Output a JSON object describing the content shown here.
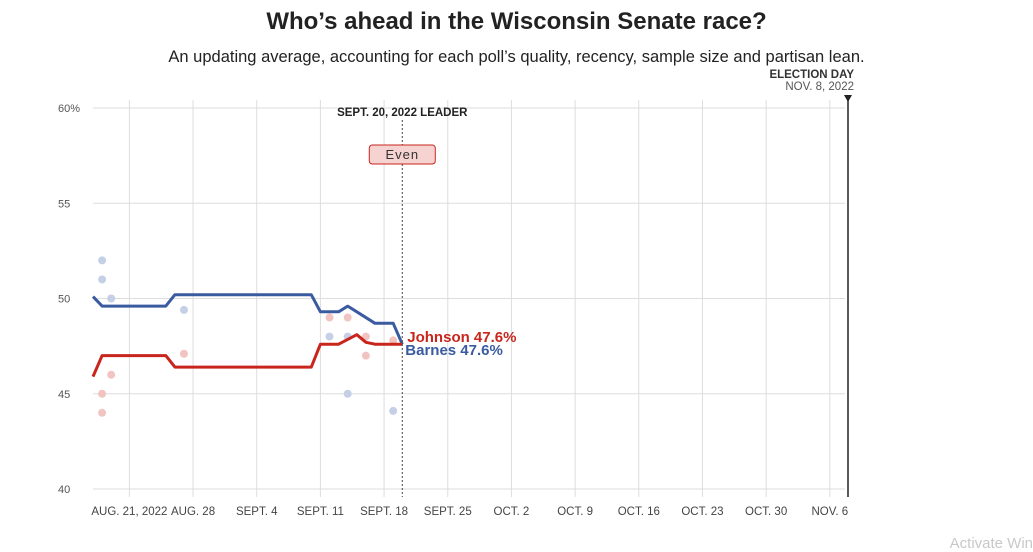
{
  "header": {
    "title": "Who’s ahead in the Wisconsin Senate race?",
    "subtitle": "An updating average, accounting for each poll’s quality, recency, sample size and partisan lean."
  },
  "watermark": "Activate Win",
  "chart_data": {
    "type": "line",
    "x_range": [
      "2022-08-17",
      "2022-11-08"
    ],
    "ylim": [
      40,
      60
    ],
    "y_ticks": [
      "60%",
      "55",
      "50",
      "45",
      "40"
    ],
    "y_tick_values": [
      60,
      55,
      50,
      45,
      40
    ],
    "x_ticks": [
      "AUG. 21, 2022",
      "AUG. 28",
      "SEPT. 4",
      "SEPT. 11",
      "SEPT. 18",
      "SEPT. 25",
      "OCT. 2",
      "OCT. 9",
      "OCT. 16",
      "OCT. 23",
      "OCT. 30",
      "NOV. 6"
    ],
    "x_tick_dates": [
      "2022-08-21",
      "2022-08-28",
      "2022-09-04",
      "2022-09-11",
      "2022-09-18",
      "2022-09-25",
      "2022-10-02",
      "2022-10-09",
      "2022-10-16",
      "2022-10-23",
      "2022-10-30",
      "2022-11-06"
    ],
    "grid": true,
    "current_date": "2022-09-20",
    "leader_label": "SEPT. 20, 2022 LEADER",
    "leader_value": "Even",
    "election_day": {
      "label": "ELECTION DAY",
      "date_label": "NOV. 8, 2022",
      "date": "2022-11-08"
    },
    "series": [
      {
        "name": "Barnes",
        "end_label": "Barnes 47.6%",
        "color": "#3a5ba0",
        "points": [
          [
            "2022-08-17",
            50.1
          ],
          [
            "2022-08-18",
            49.6
          ],
          [
            "2022-08-25",
            49.6
          ],
          [
            "2022-08-26",
            50.2
          ],
          [
            "2022-09-10",
            50.2
          ],
          [
            "2022-09-11",
            49.3
          ],
          [
            "2022-09-13",
            49.3
          ],
          [
            "2022-09-14",
            49.6
          ],
          [
            "2022-09-15",
            49.3
          ],
          [
            "2022-09-17",
            48.7
          ],
          [
            "2022-09-19",
            48.7
          ],
          [
            "2022-09-20",
            47.6
          ]
        ]
      },
      {
        "name": "Johnson",
        "end_label": "Johnson 47.6%",
        "color": "#c8261d",
        "points": [
          [
            "2022-08-17",
            45.9
          ],
          [
            "2022-08-18",
            47.0
          ],
          [
            "2022-08-25",
            47.0
          ],
          [
            "2022-08-26",
            46.4
          ],
          [
            "2022-09-10",
            46.4
          ],
          [
            "2022-09-11",
            47.6
          ],
          [
            "2022-09-13",
            47.6
          ],
          [
            "2022-09-15",
            48.1
          ],
          [
            "2022-09-16",
            47.7
          ],
          [
            "2022-09-17",
            47.6
          ],
          [
            "2022-09-19",
            47.6
          ],
          [
            "2022-09-20",
            47.6
          ]
        ]
      }
    ],
    "polls": [
      {
        "series": "Barnes",
        "color": "#c5d0e6",
        "points": [
          [
            "2022-08-18",
            52.0
          ],
          [
            "2022-08-18",
            51.0
          ],
          [
            "2022-08-19",
            50.0
          ],
          [
            "2022-08-27",
            49.4
          ],
          [
            "2022-09-12",
            48.0
          ],
          [
            "2022-09-14",
            48.0
          ],
          [
            "2022-09-14",
            45.0
          ],
          [
            "2022-09-19",
            44.1
          ]
        ]
      },
      {
        "series": "Johnson",
        "color": "#f2c4c1",
        "points": [
          [
            "2022-08-18",
            45.0
          ],
          [
            "2022-08-18",
            44.0
          ],
          [
            "2022-08-19",
            46.0
          ],
          [
            "2022-08-27",
            47.1
          ],
          [
            "2022-09-12",
            49.0
          ],
          [
            "2022-09-14",
            49.0
          ],
          [
            "2022-09-16",
            47.0
          ],
          [
            "2022-09-16",
            48.0
          ],
          [
            "2022-09-19",
            47.8
          ]
        ]
      }
    ]
  }
}
